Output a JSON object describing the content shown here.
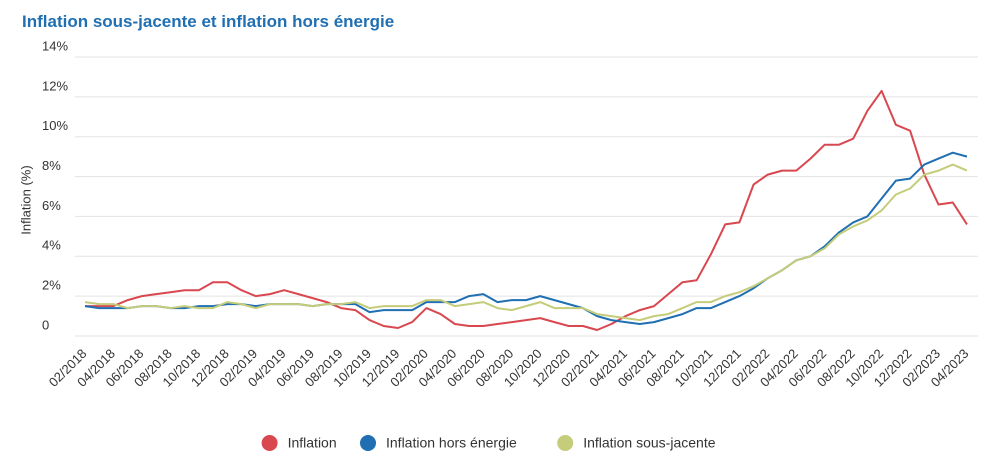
{
  "chart_data": {
    "type": "line",
    "title": "Inflation sous-jacente et inflation hors énergie",
    "y_label": "Inflation (%)",
    "categories": [
      "02/2018",
      null,
      "04/2018",
      null,
      "06/2018",
      null,
      "08/2018",
      null,
      "10/2018",
      null,
      "12/2018",
      null,
      "02/2019",
      null,
      "04/2019",
      null,
      "06/2019",
      null,
      "08/2019",
      null,
      "10/2019",
      null,
      "12/2019",
      null,
      "02/2020",
      null,
      "04/2020",
      null,
      "06/2020",
      null,
      "08/2020",
      null,
      "10/2020",
      null,
      "12/2020",
      null,
      "02/2021",
      null,
      "04/2021",
      null,
      "06/2021",
      null,
      "08/2021",
      null,
      "10/2021",
      null,
      "12/2021",
      null,
      "02/2022",
      null,
      "04/2022",
      null,
      "06/2022",
      null,
      "08/2022",
      null,
      "10/2022",
      null,
      "12/2022",
      null,
      "02/2023",
      null,
      "04/2023"
    ],
    "series": [
      {
        "name": "Inflation",
        "color": "#d9474f",
        "values": [
          1.5,
          1.5,
          1.5,
          1.8,
          2.0,
          2.1,
          2.2,
          2.3,
          2.3,
          2.7,
          2.7,
          2.3,
          2.0,
          2.1,
          2.3,
          2.1,
          1.9,
          1.7,
          1.4,
          1.3,
          0.8,
          0.5,
          0.4,
          0.7,
          1.4,
          1.1,
          0.6,
          0.5,
          0.5,
          0.6,
          0.7,
          0.8,
          0.9,
          0.7,
          0.5,
          0.5,
          0.3,
          0.6,
          1.0,
          1.3,
          1.5,
          2.1,
          2.7,
          2.8,
          4.1,
          5.6,
          5.7,
          7.6,
          8.1,
          8.3,
          8.3,
          8.9,
          9.6,
          9.6,
          9.9,
          11.3,
          12.3,
          10.6,
          10.3,
          8.1,
          6.6,
          6.7,
          5.6
        ]
      },
      {
        "name": "Inflation hors énergie",
        "color": "#1f6fb2",
        "values": [
          1.5,
          1.4,
          1.4,
          1.4,
          1.5,
          1.5,
          1.4,
          1.4,
          1.5,
          1.5,
          1.6,
          1.6,
          1.5,
          1.6,
          1.6,
          1.6,
          1.5,
          1.6,
          1.6,
          1.6,
          1.2,
          1.3,
          1.3,
          1.3,
          1.7,
          1.7,
          1.7,
          2.0,
          2.1,
          1.7,
          1.8,
          1.8,
          2.0,
          1.8,
          1.6,
          1.4,
          1.0,
          0.8,
          0.7,
          0.6,
          0.7,
          0.9,
          1.1,
          1.4,
          1.4,
          1.7,
          2.0,
          2.4,
          2.9,
          3.3,
          3.8,
          4.0,
          4.5,
          5.2,
          5.7,
          6.0,
          6.9,
          7.8,
          7.9,
          8.6,
          8.9,
          9.2,
          9.0
        ]
      },
      {
        "name": "Inflation sous-jacente",
        "color": "#c5cc7a",
        "values": [
          1.7,
          1.6,
          1.6,
          1.4,
          1.5,
          1.5,
          1.4,
          1.5,
          1.4,
          1.4,
          1.7,
          1.6,
          1.4,
          1.6,
          1.6,
          1.6,
          1.5,
          1.6,
          1.6,
          1.7,
          1.4,
          1.5,
          1.5,
          1.5,
          1.8,
          1.8,
          1.5,
          1.6,
          1.7,
          1.4,
          1.3,
          1.5,
          1.7,
          1.4,
          1.4,
          1.4,
          1.1,
          1.0,
          0.9,
          0.8,
          1.0,
          1.1,
          1.4,
          1.7,
          1.7,
          2.0,
          2.2,
          2.5,
          2.9,
          3.3,
          3.8,
          4.0,
          4.4,
          5.1,
          5.5,
          5.8,
          6.3,
          7.1,
          7.4,
          8.1,
          8.3,
          8.6,
          8.3
        ]
      }
    ],
    "ylim": [
      0,
      14
    ],
    "yticks": [
      0,
      {
        "value": 2,
        "label": "2%"
      },
      {
        "value": 4,
        "label": "4%"
      },
      {
        "value": 6,
        "label": "6%"
      },
      {
        "value": 8,
        "label": "8%"
      },
      {
        "value": 10,
        "label": "10%"
      },
      {
        "value": 12,
        "label": "12%"
      },
      {
        "value": 14,
        "label": "14%"
      }
    ],
    "grid": true,
    "legend": "bottom"
  }
}
